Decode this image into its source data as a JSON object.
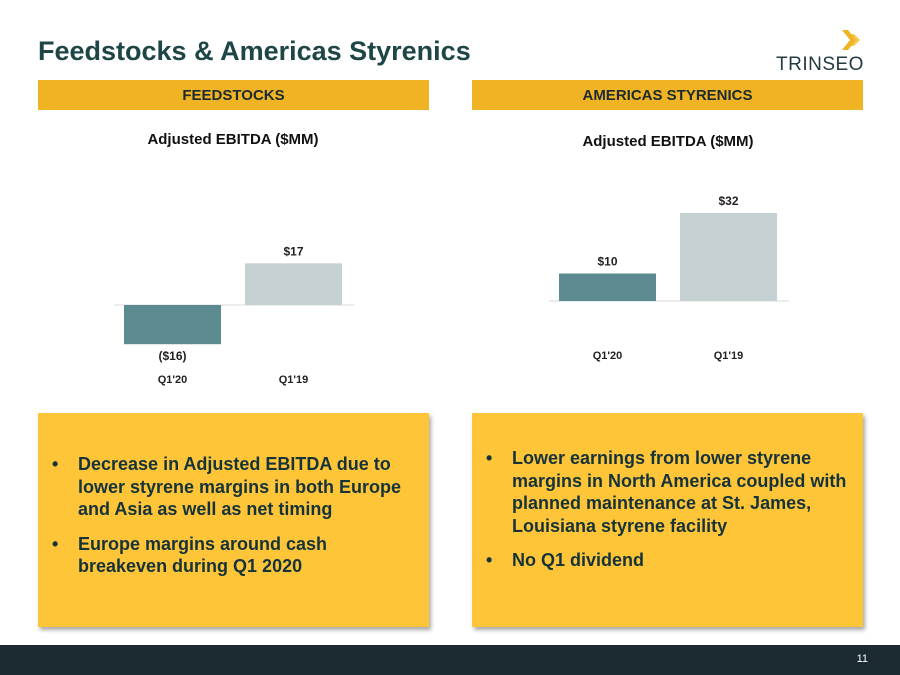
{
  "title": "Feedstocks & Americas Styrenics",
  "logo": {
    "text": "TRINSEO"
  },
  "sections": [
    {
      "header": "FEEDSTOCKS",
      "bullets": [
        "Decrease in Adjusted EBITDA due to lower styrene margins in both Europe and Asia as well as net timing",
        "Europe margins around cash breakeven during Q1 2020"
      ]
    },
    {
      "header": "AMERICAS STYRENICS",
      "bullets": [
        "Lower earnings from lower styrene margins in North America coupled with planned maintenance at St. James, Louisiana styrene facility",
        "No Q1 dividend"
      ]
    }
  ],
  "chart_data": [
    {
      "type": "bar",
      "title": "Adjusted EBITDA ($MM)",
      "categories": [
        "Q1'20",
        "Q1'19"
      ],
      "values": [
        -16,
        17
      ],
      "value_labels": [
        "($16)",
        "$17"
      ],
      "colors": [
        "#5b8a91",
        "#c5d0d2"
      ],
      "grid": false,
      "legend": "none"
    },
    {
      "type": "bar",
      "title": "Adjusted EBITDA ($MM)",
      "categories": [
        "Q1'20",
        "Q1'19"
      ],
      "values": [
        10,
        32
      ],
      "value_labels": [
        "$10",
        "$32"
      ],
      "colors": [
        "#5b8a91",
        "#c5d0d2"
      ],
      "grid": false,
      "legend": "none"
    }
  ],
  "footer": {
    "page": "11"
  },
  "colors": {
    "accent": "#f0b323",
    "panel": "#fec539",
    "title": "#1f4646",
    "footer": "#1b2b31"
  }
}
